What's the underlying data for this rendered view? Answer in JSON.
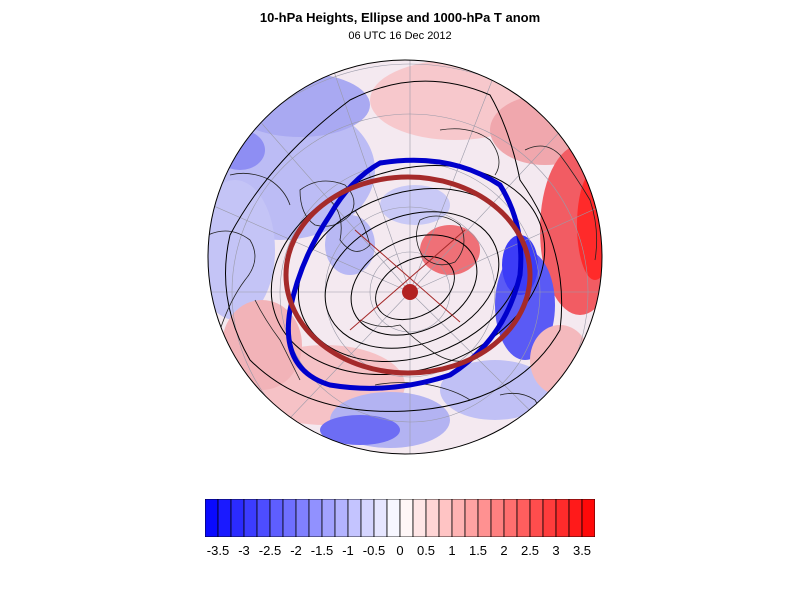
{
  "title": "10-hPa Heights, Ellipse and 1000-hPa T anom",
  "subtitle": "06 UTC 16 Dec 2012",
  "colorbar": {
    "levels": [
      -3.75,
      -3.5,
      -3.25,
      -3,
      -2.75,
      -2.5,
      -2.25,
      -2,
      -1.75,
      -1.5,
      -1.25,
      -1,
      -0.75,
      -0.5,
      -0.25,
      0,
      0.25,
      0.5,
      0.75,
      1,
      1.25,
      1.5,
      1.75,
      2,
      2.25,
      2.5,
      2.75,
      3,
      3.25,
      3.5,
      3.75
    ],
    "labels": [
      "-3.5",
      "-3",
      "-2.5",
      "-2",
      "-1.5",
      "-1",
      "-0.5",
      "0",
      "0.5",
      "1",
      "1.5",
      "2",
      "2.5",
      "3",
      "3.5"
    ],
    "low_color": "#0000ff",
    "mid_color": "#ffffff",
    "high_color": "#ff0000"
  },
  "map": {
    "projection": "north-polar-stereographic",
    "field": "1000-hPa temperature anomaly",
    "contours": "10-hPa geopotential heights",
    "polar_vortex_edge_color": "#0000cc",
    "ellipse_color": "#a52a2a",
    "ellipse_center_marker_color": "#b22222"
  }
}
